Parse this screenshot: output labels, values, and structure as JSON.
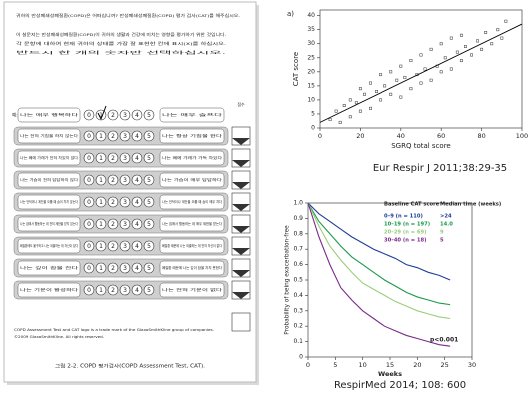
{
  "questionnaire": {
    "intro": [
      "귀하의 만성폐쇄성폐질환(COPD)은 어떠십니까? 만성폐쇄성폐질환(COPD) 평가 검사(CAT)를 해주십시오.",
      "이 설문지는 만성폐쇄성폐질환(COPD)이 귀하의 생활과 건강에 미치는 영향을 평가하기 위한 것입니다.",
      "각 문항에 대하여 현재 귀하의 상태를 가장 잘 표현한 칸에 표시(X)를 하십시오.",
      "반드시 한 개의 숫자만 선택하십시오."
    ],
    "example_label": "예:",
    "example": {
      "left": "나는 매우 행복하다",
      "right": "나는 매우 슬프다"
    },
    "score_header": "점수",
    "scale": [
      0,
      1,
      2,
      3,
      4,
      5
    ],
    "items": [
      {
        "left": "나는 전혀 기침을 하지 않는다",
        "right": "나는 항상 기침을 한다"
      },
      {
        "left": "나는 폐에 가래가 전혀 차있지 않다",
        "right": "나는 폐에 가래가 가득 차있다"
      },
      {
        "left": "나는 가슴이 전혀 답답하지 않다",
        "right": "나는 가슴이 매우 답답하다"
      },
      {
        "left": "나는 언덕이나 계단을 오를 때 숨이 차지 않는다",
        "right": "나는 언덕이나 계단을 오를 때 숨이 매우 차다"
      },
      {
        "left": "나는 집에서 활동하는 데 전혀 제한을 받지 않는다",
        "right": "나는 집에서 활동하는 데 매우 제한을 받는다"
      },
      {
        "left": "폐질환에도 불구하고 나는 외출하는 데 자신이 있다",
        "right": "폐질환 때문에 나는 외출하는 데 전혀 자신이 없다"
      },
      {
        "left": "나는 깊이 잠을 잔다",
        "right": "폐질환 때문에 나는 깊이 잠을 자지 못한다"
      },
      {
        "left": "나는 기운이 왕성하다",
        "right": "나는 전혀 기운이 없다"
      }
    ],
    "notes": [
      "COPD Assessment Test and CAT logo is a trade mark of the GlaxoSmithKline group of companies.",
      "©2009 GlaxoSmithKline. All rights reserved."
    ],
    "caption": "그림 2-2. COPD 평가검사(COPD Assessment Test, CAT)."
  },
  "chart_data": [
    {
      "type": "scatter",
      "panel_label": "a)",
      "x_label": "SGRQ total score",
      "y_label": "CAT score",
      "x": [
        5,
        8,
        10,
        12,
        15,
        15,
        18,
        20,
        20,
        22,
        25,
        25,
        28,
        30,
        30,
        32,
        35,
        35,
        38,
        40,
        40,
        42,
        45,
        45,
        48,
        50,
        50,
        52,
        55,
        55,
        58,
        60,
        60,
        62,
        65,
        65,
        68,
        70,
        70,
        72,
        75,
        78,
        80,
        82,
        85,
        88,
        90,
        92
      ],
      "values": [
        3,
        6,
        2,
        8,
        4,
        10,
        9,
        6,
        14,
        12,
        7,
        16,
        13,
        10,
        19,
        15,
        12,
        20,
        17,
        11,
        22,
        18,
        14,
        24,
        19,
        16,
        26,
        21,
        17,
        28,
        22,
        20,
        30,
        25,
        21,
        32,
        27,
        24,
        33,
        29,
        26,
        31,
        28,
        34,
        30,
        35,
        32,
        38
      ],
      "color": "#333333",
      "fit_line": {
        "x": [
          0,
          100
        ],
        "values": [
          2,
          37
        ]
      },
      "xlim": [
        0,
        100
      ],
      "ylim": [
        0,
        42
      ],
      "xticks": [
        0,
        20,
        40,
        60,
        80,
        100
      ],
      "yticks": [
        0,
        5,
        10,
        15,
        20,
        25,
        30,
        35,
        40
      ],
      "caption": "Eur Respir J 2011;38:29-35"
    },
    {
      "type": "line",
      "x_label": "Weeks",
      "y_label": "Probability of being exacerbation-free",
      "legend_title": "Baseline CAT score",
      "legend_title_2": "Median time (weeks)",
      "x": [
        0,
        2,
        4,
        6,
        8,
        10,
        12,
        14,
        16,
        18,
        20,
        22,
        24,
        26
      ],
      "series": [
        {
          "name": "0–9 (n = 110)",
          "median": ">24",
          "color": "#1f3f99",
          "values": [
            1,
            0.93,
            0.88,
            0.83,
            0.78,
            0.74,
            0.7,
            0.67,
            0.64,
            0.6,
            0.58,
            0.55,
            0.53,
            0.5
          ]
        },
        {
          "name": "10–19 (n = 197)",
          "median": "14.0",
          "color": "#1a9a4a",
          "values": [
            1,
            0.88,
            0.8,
            0.72,
            0.65,
            0.6,
            0.55,
            0.5,
            0.46,
            0.42,
            0.39,
            0.37,
            0.35,
            0.34
          ]
        },
        {
          "name": "20–29 (n = 69)",
          "median": "9",
          "color": "#9acd7a",
          "values": [
            1,
            0.85,
            0.72,
            0.63,
            0.55,
            0.48,
            0.44,
            0.4,
            0.36,
            0.33,
            0.3,
            0.28,
            0.26,
            0.25
          ]
        },
        {
          "name": "30–40 (n = 18)",
          "median": "5",
          "color": "#7b2a8c",
          "values": [
            1,
            0.78,
            0.6,
            0.45,
            0.37,
            0.3,
            0.25,
            0.2,
            0.17,
            0.14,
            0.12,
            0.1,
            0.08,
            0.07
          ]
        }
      ],
      "annotation": "p<0.001",
      "xlim": [
        0,
        30
      ],
      "ylim": [
        0,
        1
      ],
      "xticks": [
        0,
        5,
        10,
        15,
        20,
        25,
        30
      ],
      "yticks": [
        0,
        0.1,
        0.2,
        0.3,
        0.4,
        0.5,
        0.6,
        0.7,
        0.8,
        0.9,
        {
          "value": 1,
          "label": "1.0"
        }
      ],
      "caption": "RespirMed 2014; 108: 600"
    }
  ]
}
